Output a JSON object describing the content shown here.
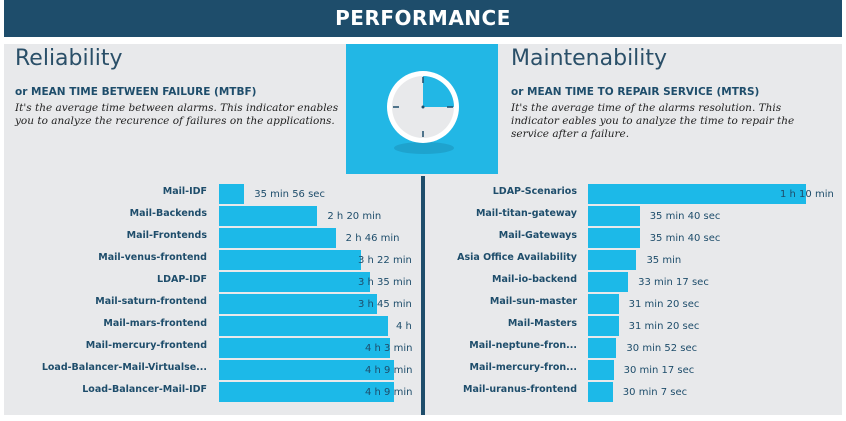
{
  "header": {
    "title": "PERFORMANCE"
  },
  "left": {
    "title": "Reliability",
    "subtitle": "or MEAN TIME BETWEEN FAILURE (MTBF)",
    "description": "It's the average time between alarms. This indicator enables you to analyze the recurence of failures on the applications."
  },
  "right": {
    "title": "Maintenability",
    "subtitle": "or MEAN TIME TO REPAIR SERVICE (MTRS)",
    "description": "It's the average time of the alarms resolution. This indicator eables you to analyze the time to repair the service after a failure."
  },
  "clock_icon": "clock-icon",
  "colors": {
    "header": "#1e4d6b",
    "bar": "#1cb9e8",
    "panel": "#e8e9eb",
    "clock_bg": "#22b7e5"
  },
  "chart_data": [
    {
      "type": "bar",
      "orientation": "horizontal",
      "unit": "minutes",
      "xlim": [
        0,
        249
      ],
      "categories": [
        "Mail-IDF",
        "Mail-Backends",
        "Mail-Frontends",
        "Mail-venus-frontend",
        "LDAP-IDF",
        "Mail-saturn-frontend",
        "Mail-mars-frontend",
        "Mail-mercury-frontend",
        "Load-Balancer-Mail-Virtualse...",
        "Load-Balancer-Mail-IDF"
      ],
      "values": [
        35.93,
        140,
        166,
        202,
        215,
        225,
        240,
        243,
        249,
        249
      ],
      "labels": [
        "35 min 56 sec",
        "2 h 20 min",
        "2 h 46 min",
        "3 h 22 min",
        "3 h 35 min",
        "3 h 45 min",
        "4 h",
        "4 h 3 min",
        "4 h 9 min",
        "4 h 9 min"
      ]
    },
    {
      "type": "bar",
      "orientation": "horizontal",
      "unit": "minutes",
      "xlim": [
        25,
        70
      ],
      "categories": [
        "LDAP-Scenarios",
        "Mail-titan-gateway",
        "Mail-Gateways",
        "Asia Office Availability",
        "Mail-io-backend",
        "Mail-sun-master",
        "Mail-Masters",
        "Mail-neptune-fron...",
        "Mail-mercury-fron...",
        "Mail-uranus-frontend"
      ],
      "values": [
        70,
        35.67,
        35.67,
        35,
        33.28,
        31.33,
        31.33,
        30.87,
        30.28,
        30.12
      ],
      "labels": [
        "1 h 10 min",
        "35 min 40 sec",
        "35 min 40 sec",
        "35 min",
        "33 min 17 sec",
        "31 min 20 sec",
        "31 min 20 sec",
        "30 min 52 sec",
        "30 min 17 sec",
        "30 min 7 sec"
      ]
    }
  ]
}
